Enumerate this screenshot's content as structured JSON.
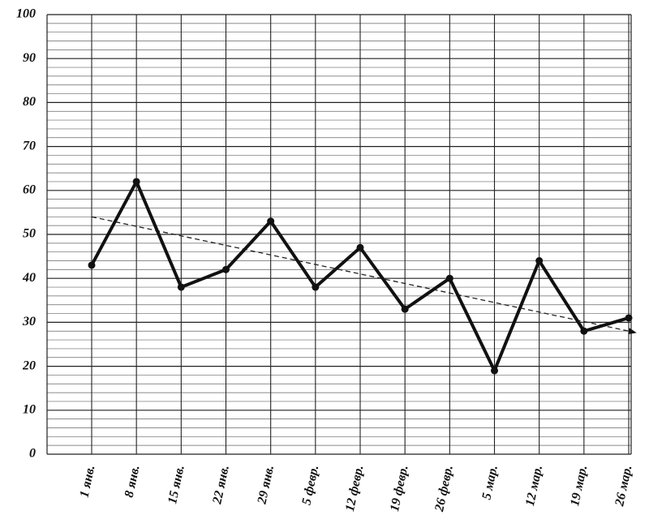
{
  "chart_data": {
    "type": "line",
    "categories": [
      "1 янв.",
      "8 янв.",
      "15 янв.",
      "22 янв.",
      "29 янв.",
      "5 февр.",
      "12 февр.",
      "19 февр.",
      "26 февр.",
      "5 мар.",
      "12 мар.",
      "19 мар.",
      "26 мар."
    ],
    "values": [
      43,
      62,
      38,
      42,
      53,
      38,
      47,
      33,
      40,
      19,
      44,
      28,
      31
    ],
    "color": "#111111",
    "trend": [
      54,
      28
    ],
    "ylim": [
      0,
      100
    ],
    "yticks": [
      0,
      10,
      20,
      30,
      40,
      50,
      60,
      70,
      80,
      90,
      100
    ],
    "grid": true
  }
}
